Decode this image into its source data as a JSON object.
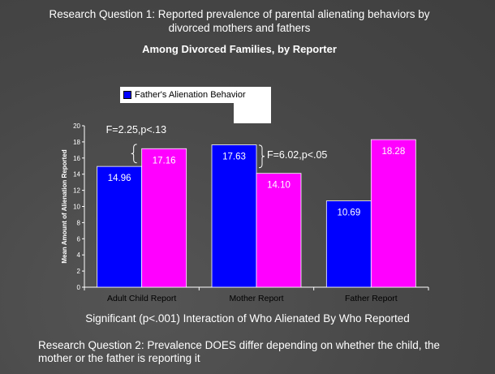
{
  "title_line1": "Research Question 1: Reported prevalence of parental alienating behaviors by divorced mothers and fathers",
  "title_line2": "Among Divorced Families, by Reporter",
  "footer_line1": "Significant (p<.001) Interaction of Who Alienated By Who Reported",
  "footer_line2": "Research Question 2: Prevalence DOES differ depending on whether the child, the mother or the father is reporting it",
  "colors": {
    "father": "#0000ff",
    "mother": "#ff00ff",
    "background": "#4a4a4a"
  },
  "chart_data": {
    "type": "bar",
    "categories": [
      "Adult Child Report",
      "Mother Report",
      "Father Report"
    ],
    "series": [
      {
        "name": "Father's Alienation Behavior",
        "values": [
          14.96,
          17.63,
          10.69
        ]
      },
      {
        "values": [
          17.16,
          14.1,
          18.28
        ]
      }
    ],
    "data_labels": [
      [
        "14.96",
        "17.63",
        "10.69"
      ],
      [
        "17.16",
        "14.10",
        "18.28"
      ]
    ],
    "ylabel": "Mean Amount of Alienation Reported",
    "xlabel": "",
    "ylim": [
      0,
      20
    ],
    "yticks": [
      0,
      2,
      4,
      6,
      8,
      10,
      12,
      14,
      16,
      18,
      20
    ],
    "annotations": [
      "F=2.25,p<.13",
      "F=6.02,p<.05"
    ],
    "legend": "top-left",
    "grid": false
  }
}
